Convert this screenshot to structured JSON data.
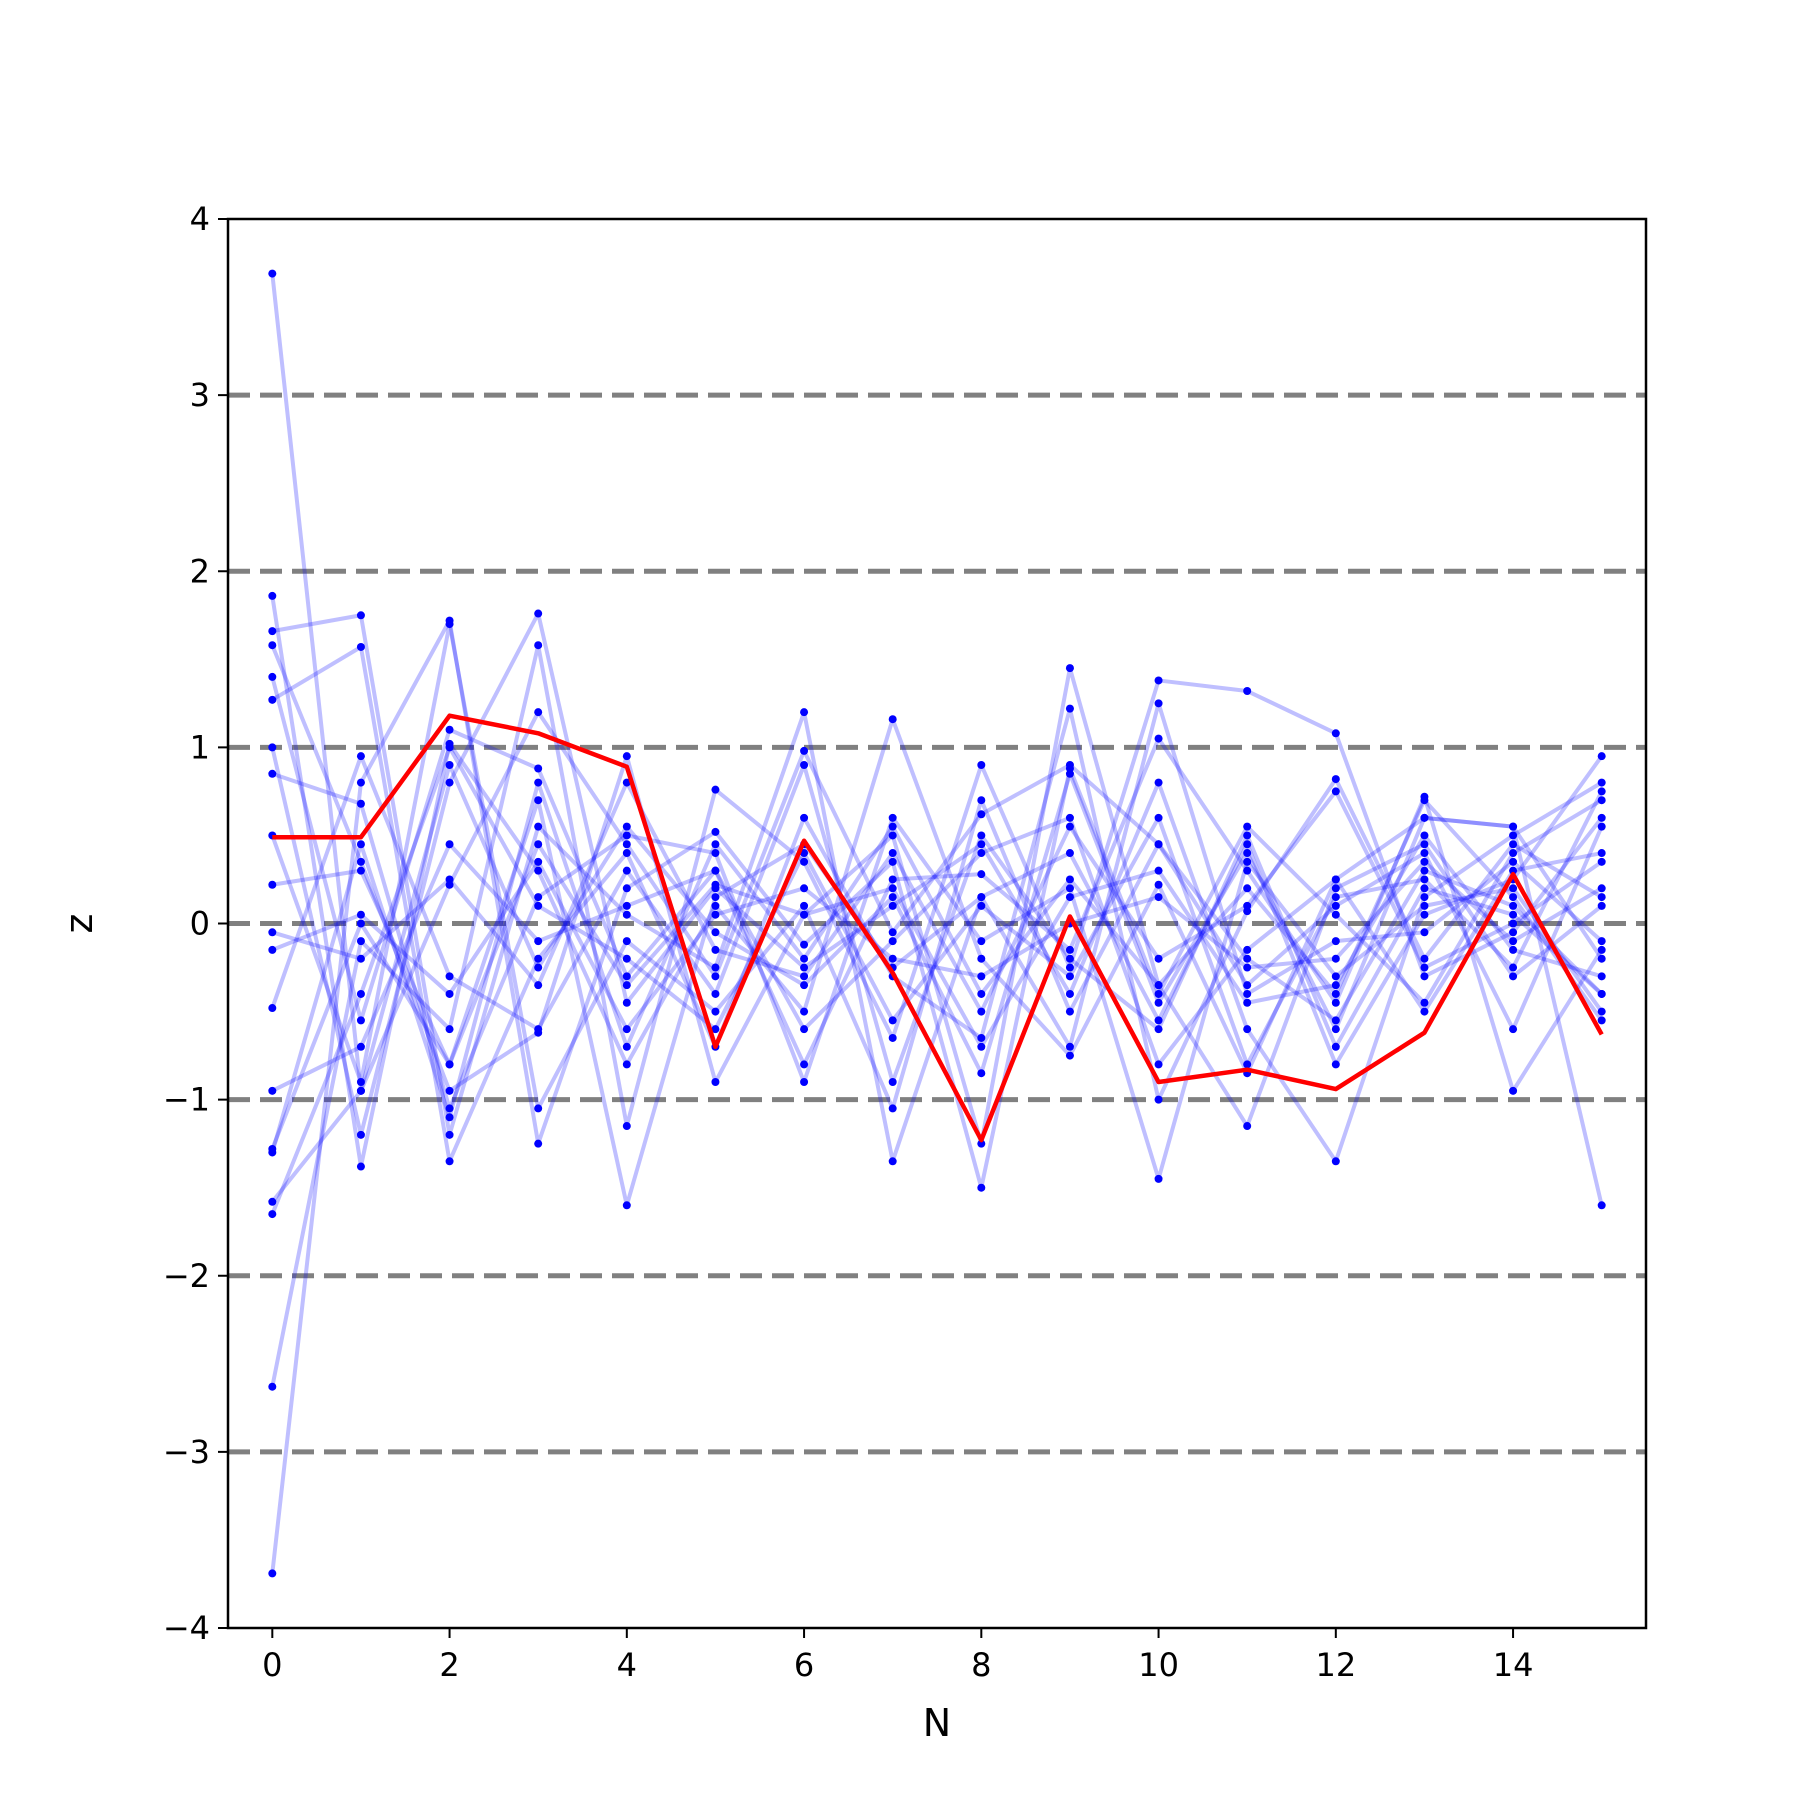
{
  "chart_data": {
    "type": "line",
    "title": "",
    "xlabel": "N",
    "ylabel": "z",
    "xlim": [
      -0.5,
      15.5
    ],
    "ylim": [
      -4,
      4
    ],
    "x_ticks": [
      0,
      2,
      4,
      6,
      8,
      10,
      12,
      14
    ],
    "x_tick_labels": [
      "0",
      "2",
      "4",
      "6",
      "8",
      "10",
      "12",
      "14"
    ],
    "y_ticks": [
      -4,
      -3,
      -2,
      -1,
      0,
      1,
      2,
      3,
      4
    ],
    "y_tick_labels": [
      "−4",
      "−3",
      "−2",
      "−1",
      "0",
      "1",
      "2",
      "3",
      "4"
    ],
    "reference_lines": [
      -3,
      -2,
      -1,
      0,
      1,
      2,
      3
    ],
    "reference_line_color": "#808080",
    "x": [
      0,
      1,
      2,
      3,
      4,
      5,
      6,
      7,
      8,
      9,
      10,
      11,
      12,
      13,
      14,
      15
    ],
    "series_color": "#0000ff",
    "highlight_color": "#ff0000",
    "series": [
      {
        "values": [
          3.69,
          -0.95,
          0.22,
          1.2,
          0.45,
          -0.3,
          0.98,
          -0.05,
          0.62,
          0.9,
          0.45,
          -0.2,
          -0.55,
          0.3,
          0.1,
          -0.4
        ]
      },
      {
        "values": [
          -3.69,
          0.8,
          1.72,
          -1.25,
          0.2,
          0.52,
          -0.12,
          0.35,
          -1.5,
          0.88,
          -0.4,
          0.55,
          0.05,
          -0.45,
          0.4,
          0.7
        ]
      },
      {
        "values": [
          -2.63,
          -0.1,
          -0.6,
          1.58,
          -1.15,
          0.76,
          0.35,
          -0.65,
          0.9,
          -0.25,
          1.38,
          1.32,
          1.08,
          -0.3,
          -0.05,
          0.6
        ]
      },
      {
        "values": [
          1.86,
          -1.38,
          1.02,
          0.3,
          -0.8,
          0.1,
          -0.5,
          1.16,
          -0.2,
          -0.75,
          0.22,
          -0.85,
          0.25,
          0.6,
          0.55,
          -1.6
        ]
      },
      {
        "values": [
          1.66,
          1.75,
          -1.2,
          0.55,
          0.05,
          -0.25,
          1.2,
          -1.35,
          0.15,
          0.4,
          -0.55,
          0.45,
          -0.8,
          0.05,
          0.25,
          0.95
        ]
      },
      {
        "values": [
          1.58,
          0.35,
          -0.95,
          -0.62,
          0.95,
          -0.9,
          0.05,
          0.5,
          -1.25,
          1.45,
          -0.35,
          -1.15,
          0.2,
          0.45,
          -0.3,
          0.1
        ]
      },
      {
        "values": [
          1.4,
          -0.55,
          1.1,
          0.88,
          -0.3,
          0.3,
          -0.8,
          0.25,
          0.28,
          -0.15,
          1.05,
          0.3,
          -0.45,
          0.72,
          -0.95,
          -0.15
        ]
      },
      {
        "values": [
          1.27,
          1.57,
          -1.35,
          -0.2,
          0.4,
          -0.7,
          0.6,
          -0.3,
          -0.65,
          1.22,
          -1.0,
          0.07,
          0.82,
          -0.2,
          0.45,
          0.15
        ]
      },
      {
        "values": [
          1.0,
          -1.2,
          0.8,
          1.76,
          -0.45,
          0.2,
          -0.25,
          0.1,
          0.45,
          -0.4,
          0.8,
          -0.6,
          -1.35,
          0.15,
          0.5,
          0.8
        ]
      },
      {
        "values": [
          0.85,
          0.68,
          -1.05,
          0.15,
          0.5,
          0.4,
          -0.9,
          0.6,
          -0.1,
          0.2,
          -1.45,
          0.35,
          -0.3,
          0.1,
          0.2,
          -0.5
        ]
      },
      {
        "values": [
          0.5,
          -0.9,
          1.7,
          -1.05,
          -0.1,
          -0.5,
          0.1,
          -1.05,
          0.7,
          -0.5,
          0.45,
          -0.35,
          0.1,
          0.4,
          -0.6,
          0.55
        ]
      },
      {
        "values": [
          0.22,
          0.3,
          -0.8,
          0.7,
          -1.6,
          0.15,
          0.45,
          -0.25,
          0.15,
          -0.7,
          1.25,
          -0.4,
          -0.1,
          -0.05,
          0.35,
          -0.1
        ]
      },
      {
        "values": [
          -0.05,
          -0.2,
          0.25,
          -0.35,
          0.8,
          -0.15,
          -0.3,
          0.4,
          -0.5,
          0.55,
          -0.2,
          0.1,
          0.75,
          -0.25,
          0.0,
          0.35
        ]
      },
      {
        "values": [
          -0.15,
          0.05,
          -0.4,
          0.35,
          -0.6,
          0.05,
          0.2,
          -0.2,
          -0.3,
          0.0,
          0.15,
          -0.25,
          -0.2,
          0.35,
          -0.1,
          0.2
        ]
      },
      {
        "values": [
          -0.48,
          0.95,
          -0.3,
          -0.6,
          0.3,
          -0.4,
          0.9,
          -0.9,
          0.5,
          -0.2,
          -0.6,
          0.5,
          -0.7,
          0.2,
          0.05,
          -0.4
        ]
      },
      {
        "values": [
          -0.95,
          -0.7,
          0.45,
          -0.1,
          0.1,
          0.3,
          -0.6,
          -0.1,
          0.4,
          0.6,
          -0.8,
          -0.15,
          0.25,
          -0.5,
          0.3,
          0.4
        ]
      },
      {
        "values": [
          -1.28,
          0.0,
          -0.8,
          0.45,
          -0.35,
          0.22,
          0.05,
          0.2,
          -0.7,
          0.15,
          0.3,
          -0.45,
          -0.35,
          0.5,
          -0.15,
          -0.3
        ]
      },
      {
        "values": [
          -1.58,
          -0.95,
          0.9,
          -0.25,
          0.55,
          -0.05,
          -0.35,
          0.15,
          -0.85,
          0.85,
          -0.45,
          0.4,
          -0.6,
          0.6,
          0.55,
          -0.2
        ]
      },
      {
        "values": [
          -1.65,
          -0.4,
          1.0,
          0.1,
          -0.2,
          -0.6,
          0.4,
          -0.55,
          0.1,
          -0.3,
          0.6,
          -0.8,
          0.15,
          0.25,
          -0.25,
          0.75
        ]
      },
      {
        "values": [
          -1.3,
          0.45,
          -1.1,
          0.8,
          -0.7,
          0.45,
          -0.2,
          0.55,
          -0.4,
          0.25,
          -0.35,
          0.2,
          -0.4,
          0.7,
          0.15,
          -0.55
        ]
      }
    ],
    "highlight": {
      "values": [
        0.49,
        0.49,
        1.18,
        1.08,
        0.89,
        -0.7,
        0.47,
        -0.28,
        -1.23,
        0.04,
        -0.9,
        -0.83,
        -0.94,
        -0.62,
        0.28,
        -0.63
      ]
    }
  }
}
